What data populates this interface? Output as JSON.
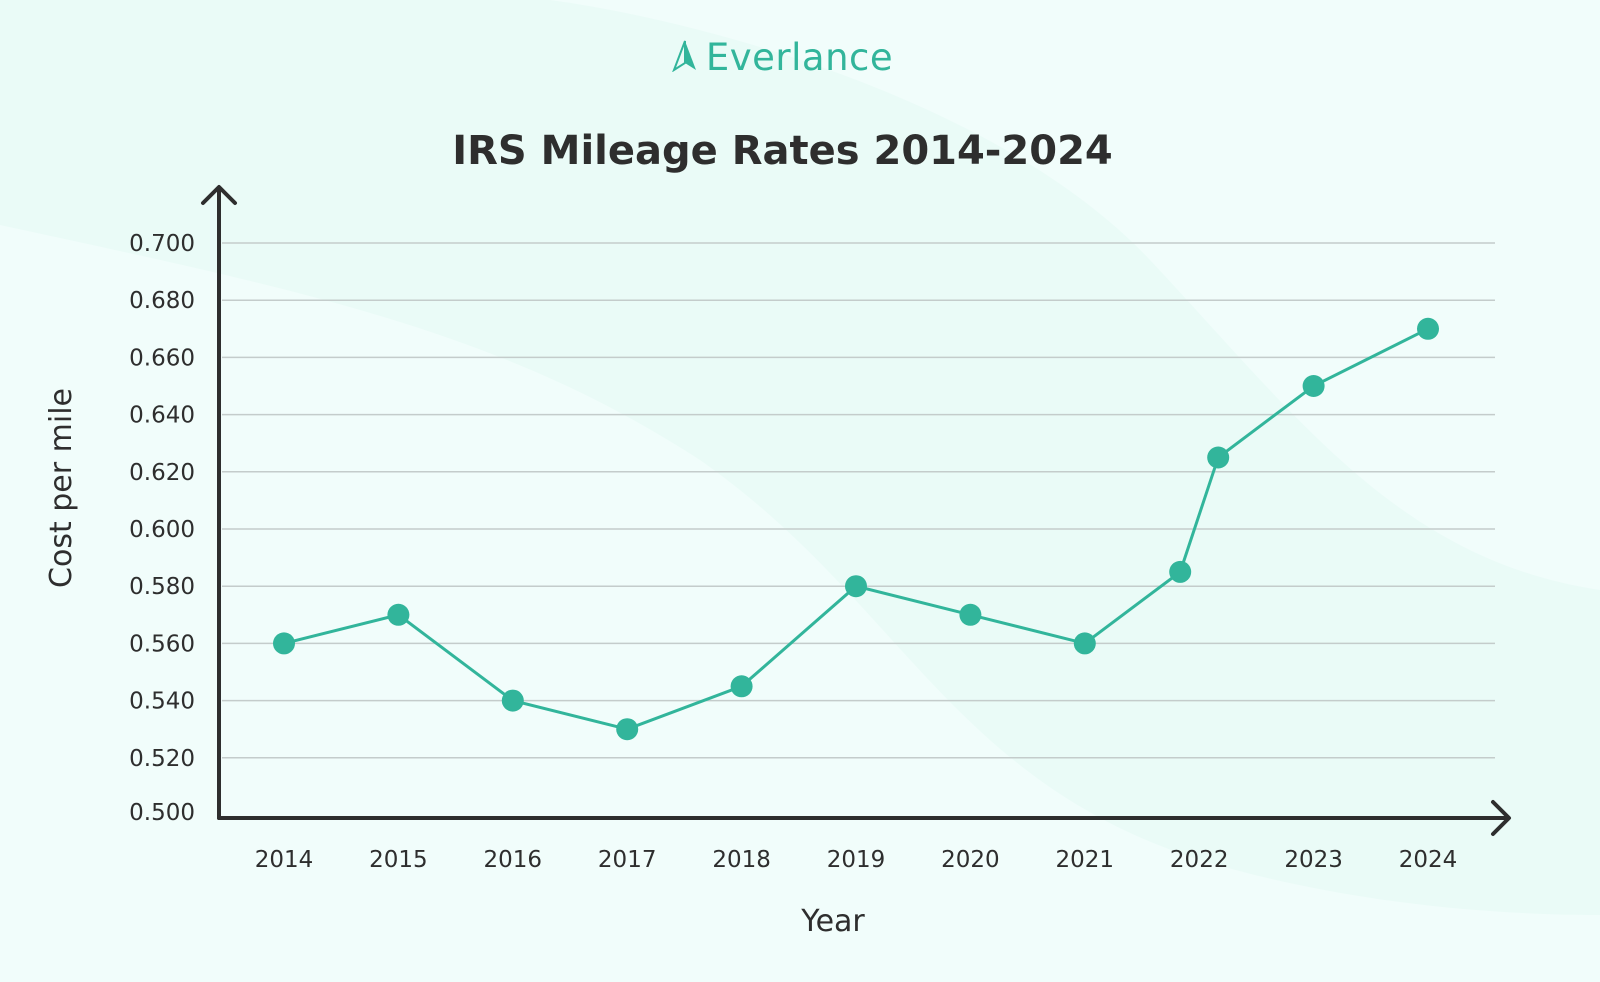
{
  "brand": {
    "name": "Everlance",
    "icon": "arrow-logo-icon",
    "color": "#32b59b"
  },
  "chart_data": {
    "type": "line",
    "title": "IRS Mileage Rates 2014-2024",
    "xlabel": "Year",
    "ylabel": "Cost per mile",
    "ylim": [
      0.5,
      0.7
    ],
    "yticks": [
      "0.500",
      "0.520",
      "0.540",
      "0.560",
      "0.580",
      "0.600",
      "0.620",
      "0.640",
      "0.660",
      "0.680",
      "0.700"
    ],
    "xticks": [
      "2014",
      "2015",
      "2016",
      "2017",
      "2018",
      "2019",
      "2020",
      "2021",
      "2022",
      "2023",
      "2024"
    ],
    "grid": true,
    "series_color": "#32b59b",
    "points": [
      {
        "year": "2014",
        "value": 0.56
      },
      {
        "year": "2015",
        "value": 0.57
      },
      {
        "year": "2016",
        "value": 0.54
      },
      {
        "year": "2017",
        "value": 0.53
      },
      {
        "year": "2018",
        "value": 0.545
      },
      {
        "year": "2019",
        "value": 0.58
      },
      {
        "year": "2020",
        "value": 0.57
      },
      {
        "year": "2021",
        "value": 0.56
      },
      {
        "year": "2022",
        "value": 0.585
      },
      {
        "year": "2022",
        "value": 0.625
      },
      {
        "year": "2023",
        "value": 0.65
      },
      {
        "year": "2024",
        "value": 0.67
      }
    ]
  }
}
